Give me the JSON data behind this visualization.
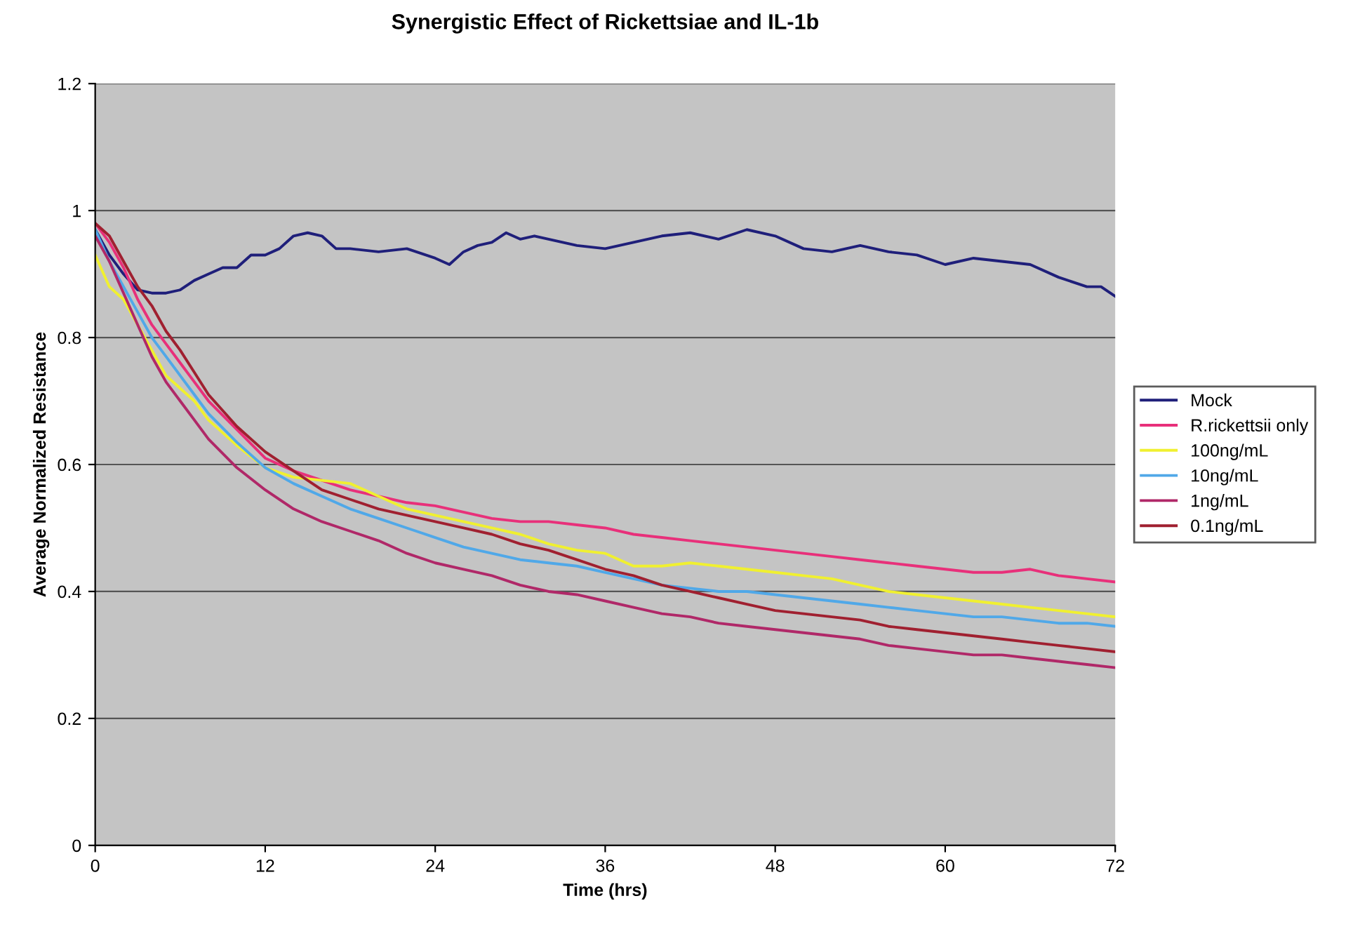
{
  "chart_data": {
    "type": "line",
    "title": "Synergistic Effect of Rickettsiae and IL-1b",
    "xlabel": "Time (hrs)",
    "ylabel": "Average Normalized Resistance",
    "x": [
      0,
      1,
      2,
      3,
      4,
      5,
      6,
      7,
      8,
      10,
      12,
      14,
      16,
      18,
      20,
      22,
      24,
      26,
      28,
      30,
      32,
      34,
      36,
      38,
      40,
      42,
      44,
      46,
      48,
      50,
      52,
      54,
      56,
      58,
      60,
      62,
      64,
      66,
      68,
      70,
      72
    ],
    "xlim": [
      0,
      72
    ],
    "xticks": [
      0,
      12,
      24,
      36,
      48,
      60,
      72
    ],
    "ylim": [
      0,
      1.2
    ],
    "yticks": [
      0,
      0.2,
      0.4,
      0.6,
      0.8,
      1,
      1.2
    ],
    "grid": "y",
    "legend": "right",
    "marker": "none",
    "line_style": "solid",
    "series": [
      {
        "name": "Mock",
        "color": "#1f1f7a",
        "x": [
          0,
          0.5,
          1,
          2,
          3,
          4,
          5,
          6,
          7,
          8,
          9,
          10,
          11,
          12,
          13,
          14,
          15,
          16,
          17,
          18,
          20,
          22,
          24,
          25,
          26,
          27,
          28,
          29,
          30,
          31,
          32,
          34,
          36,
          38,
          40,
          42,
          44,
          46,
          48,
          50,
          52,
          54,
          56,
          58,
          60,
          62,
          64,
          66,
          68,
          70,
          71,
          72
        ],
        "values": [
          0.97,
          0.95,
          0.93,
          0.9,
          0.875,
          0.87,
          0.87,
          0.875,
          0.89,
          0.9,
          0.91,
          0.91,
          0.93,
          0.93,
          0.94,
          0.96,
          0.965,
          0.96,
          0.94,
          0.94,
          0.935,
          0.94,
          0.925,
          0.915,
          0.935,
          0.945,
          0.95,
          0.965,
          0.955,
          0.96,
          0.955,
          0.945,
          0.94,
          0.95,
          0.96,
          0.965,
          0.955,
          0.97,
          0.96,
          0.94,
          0.935,
          0.945,
          0.935,
          0.93,
          0.915,
          0.925,
          0.92,
          0.915,
          0.895,
          0.88,
          0.88,
          0.865
        ]
      },
      {
        "name": "R.rickettsii only",
        "color": "#e8307a",
        "values": [
          0.98,
          0.95,
          0.91,
          0.86,
          0.82,
          0.79,
          0.76,
          0.73,
          0.7,
          0.655,
          0.61,
          0.59,
          0.575,
          0.56,
          0.55,
          0.54,
          0.535,
          0.525,
          0.515,
          0.51,
          0.51,
          0.505,
          0.5,
          0.49,
          0.485,
          0.48,
          0.475,
          0.47,
          0.465,
          0.46,
          0.455,
          0.45,
          0.445,
          0.44,
          0.435,
          0.43,
          0.43,
          0.435,
          0.425,
          0.42,
          0.415
        ]
      },
      {
        "name": "100ng/mL",
        "color": "#f0f030",
        "values": [
          0.93,
          0.88,
          0.86,
          0.82,
          0.78,
          0.74,
          0.72,
          0.7,
          0.67,
          0.63,
          0.595,
          0.58,
          0.575,
          0.57,
          0.55,
          0.53,
          0.52,
          0.51,
          0.5,
          0.49,
          0.475,
          0.465,
          0.46,
          0.44,
          0.44,
          0.445,
          0.44,
          0.435,
          0.43,
          0.425,
          0.42,
          0.41,
          0.4,
          0.395,
          0.39,
          0.385,
          0.38,
          0.375,
          0.37,
          0.365,
          0.36
        ]
      },
      {
        "name": "10ng/mL",
        "color": "#50a8e8",
        "values": [
          0.97,
          0.92,
          0.88,
          0.84,
          0.8,
          0.77,
          0.74,
          0.71,
          0.68,
          0.635,
          0.595,
          0.57,
          0.55,
          0.53,
          0.515,
          0.5,
          0.485,
          0.47,
          0.46,
          0.45,
          0.445,
          0.44,
          0.43,
          0.42,
          0.41,
          0.405,
          0.4,
          0.4,
          0.395,
          0.39,
          0.385,
          0.38,
          0.375,
          0.37,
          0.365,
          0.36,
          0.36,
          0.355,
          0.35,
          0.35,
          0.345
        ]
      },
      {
        "name": "1ng/mL",
        "color": "#b02868",
        "values": [
          0.96,
          0.92,
          0.87,
          0.82,
          0.77,
          0.73,
          0.7,
          0.67,
          0.64,
          0.595,
          0.56,
          0.53,
          0.51,
          0.495,
          0.48,
          0.46,
          0.445,
          0.435,
          0.425,
          0.41,
          0.4,
          0.395,
          0.385,
          0.375,
          0.365,
          0.36,
          0.35,
          0.345,
          0.34,
          0.335,
          0.33,
          0.325,
          0.315,
          0.31,
          0.305,
          0.3,
          0.3,
          0.295,
          0.29,
          0.285,
          0.28
        ]
      },
      {
        "name": "0.1ng/mL",
        "color": "#a02030",
        "values": [
          0.98,
          0.96,
          0.92,
          0.88,
          0.85,
          0.81,
          0.78,
          0.745,
          0.71,
          0.66,
          0.62,
          0.59,
          0.56,
          0.545,
          0.53,
          0.52,
          0.51,
          0.5,
          0.49,
          0.475,
          0.465,
          0.45,
          0.435,
          0.425,
          0.41,
          0.4,
          0.39,
          0.38,
          0.37,
          0.365,
          0.36,
          0.355,
          0.345,
          0.34,
          0.335,
          0.33,
          0.325,
          0.32,
          0.315,
          0.31,
          0.305
        ]
      }
    ]
  }
}
